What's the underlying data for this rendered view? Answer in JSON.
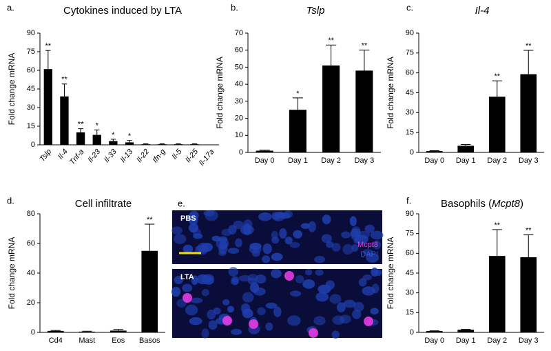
{
  "chart_data": [
    {
      "type": "bar",
      "panel_label": "a.",
      "title": "Cytokines induced by LTA",
      "title_italic": false,
      "y_label": "Fold change mRNA",
      "italic_categories": true,
      "rotate_categories": true,
      "categories": [
        "Tslp",
        "Il-4",
        "Tnf-a",
        "Il-23",
        "Il-33",
        "Il-13",
        "Il-22",
        "Ifn-g",
        "Il-5",
        "Il-25",
        "Il-17a"
      ],
      "values": [
        61,
        39,
        10,
        8,
        3,
        2,
        0.5,
        0.5,
        0.5,
        0.5,
        0
      ],
      "errors": [
        15,
        10,
        3,
        4,
        1.5,
        1.5,
        0.3,
        0.3,
        0.3,
        0.3,
        0
      ],
      "significance": [
        "**",
        "**",
        "**",
        "*",
        "*",
        "*",
        null,
        null,
        null,
        null,
        null
      ],
      "color": "#000000",
      "ylim": [
        0,
        90
      ],
      "yticks": [
        0,
        15,
        30,
        45,
        60,
        75,
        90
      ]
    },
    {
      "type": "bar",
      "panel_label": "b.",
      "title": "Tslp",
      "title_italic": true,
      "y_label": "Fold change mRNA",
      "categories": [
        "Day 0",
        "Day 1",
        "Day 2",
        "Day 3"
      ],
      "values": [
        1,
        25,
        51,
        48
      ],
      "errors": [
        0.3,
        7,
        12,
        12
      ],
      "significance": [
        null,
        "*",
        "**",
        "**"
      ],
      "color": "#000000",
      "ylim": [
        0,
        70
      ],
      "yticks": [
        0,
        10,
        20,
        30,
        40,
        50,
        60,
        70
      ]
    },
    {
      "type": "bar",
      "panel_label": "c.",
      "title": "Il-4",
      "title_italic": true,
      "y_label": "Fold change mRNA",
      "categories": [
        "Day 0",
        "Day 1",
        "Day 2",
        "Day 3"
      ],
      "values": [
        1,
        5,
        42,
        59
      ],
      "errors": [
        0.3,
        1,
        12,
        18
      ],
      "significance": [
        null,
        null,
        "**",
        "**"
      ],
      "color": "#000000",
      "ylim": [
        0,
        90
      ],
      "yticks": [
        0,
        15,
        30,
        45,
        60,
        75,
        90
      ]
    },
    {
      "type": "bar",
      "panel_label": "d.",
      "title": "Cell infiltrate",
      "title_italic": false,
      "y_label": "Fold change mRNA",
      "categories": [
        "Cd4",
        "Mast",
        "Eos",
        "Basos"
      ],
      "values": [
        1,
        0.5,
        1.2,
        55
      ],
      "errors": [
        0.3,
        0.3,
        0.8,
        18
      ],
      "significance": [
        null,
        null,
        null,
        "**"
      ],
      "color": "#000000",
      "ylim": [
        0,
        80
      ],
      "yticks": [
        0,
        20,
        40,
        60,
        80
      ]
    },
    {
      "type": "image",
      "panel_label": "e.",
      "panels": [
        "PBS",
        "LTA"
      ],
      "legend": [
        {
          "name": "Mcpt8",
          "color": "#e43ce4"
        },
        {
          "name": "DAPI",
          "color": "#2f5fe0"
        }
      ]
    },
    {
      "type": "bar",
      "panel_label": "f.",
      "title": [
        "Basophils (",
        "Mcpt8",
        ")"
      ],
      "title_italic": [
        false,
        true,
        false
      ],
      "y_label": "Fold change mRNA",
      "categories": [
        "Day 0",
        "Day 1",
        "Day 2",
        "Day 3"
      ],
      "values": [
        1,
        2,
        58,
        57
      ],
      "errors": [
        0.2,
        0.3,
        20,
        17
      ],
      "significance": [
        null,
        null,
        "**",
        "**"
      ],
      "color": "#000000",
      "ylim": [
        0,
        90
      ],
      "yticks": [
        0,
        15,
        30,
        45,
        60,
        75,
        90
      ]
    }
  ]
}
